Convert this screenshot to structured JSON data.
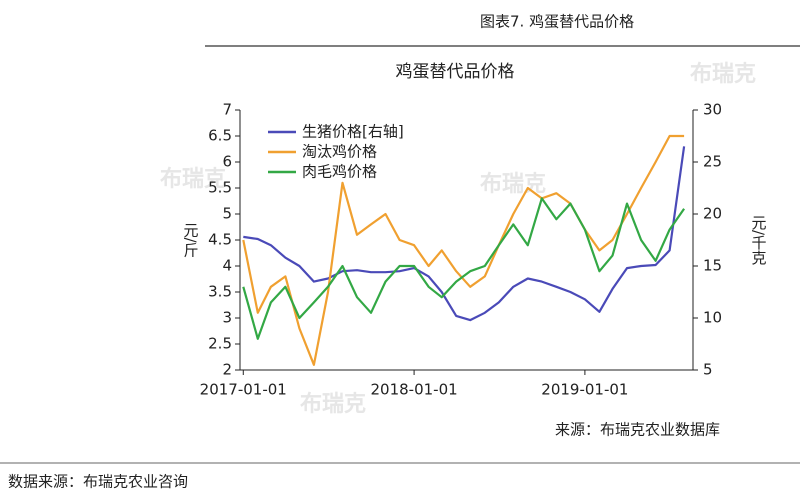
{
  "header": "图表7.   鸡蛋替代品价格",
  "chart_data": {
    "type": "line",
    "title": "鸡蛋替代品价格",
    "x": [
      "2017-01-01",
      "2017-02-01",
      "2017-03-01",
      "2017-04-01",
      "2017-05-01",
      "2017-06-01",
      "2017-07-01",
      "2017-08-01",
      "2017-09-01",
      "2017-10-01",
      "2017-11-01",
      "2017-12-01",
      "2018-01-01",
      "2018-02-01",
      "2018-03-01",
      "2018-04-01",
      "2018-05-01",
      "2018-06-01",
      "2018-07-01",
      "2018-08-01",
      "2018-09-01",
      "2018-10-01",
      "2018-11-01",
      "2018-12-01",
      "2019-01-01",
      "2019-02-01",
      "2019-03-01",
      "2019-04-01",
      "2019-05-01",
      "2019-06-01",
      "2019-07-01",
      "2019-08-01"
    ],
    "xlim": [
      "2016-12-25",
      "2019-08-20"
    ],
    "xticks": [
      "2017-01-01",
      "2018-01-01",
      "2019-01-01"
    ],
    "ylabel": "元/斤",
    "y2label": "元/千克",
    "ylim": [
      2,
      7
    ],
    "yticks": [
      2,
      2.5,
      3,
      3.5,
      4,
      4.5,
      5,
      5.5,
      6,
      6.5,
      7
    ],
    "y2lim": [
      5,
      30
    ],
    "y2ticks": [
      5,
      10,
      15,
      20,
      25,
      30
    ],
    "legend": "top-left",
    "series": [
      {
        "name": "生猪价格[右轴]",
        "color": "#4a4ab8",
        "axis": "y2",
        "values": [
          17.8,
          17.6,
          17.0,
          15.8,
          15.0,
          13.5,
          13.8,
          14.5,
          14.6,
          14.4,
          14.4,
          14.5,
          14.8,
          14.0,
          12.5,
          10.2,
          9.8,
          10.5,
          11.5,
          13.0,
          13.8,
          13.5,
          13.0,
          12.5,
          11.8,
          10.6,
          12.8,
          14.8,
          15.0,
          15.1,
          16.5,
          26.5
        ]
      },
      {
        "name": "淘汰鸡价格",
        "color": "#f0a030",
        "values": [
          4.5,
          3.1,
          3.6,
          3.8,
          2.8,
          2.1,
          3.5,
          5.6,
          4.6,
          4.8,
          5.0,
          4.5,
          4.4,
          4.0,
          4.3,
          3.9,
          3.6,
          3.8,
          4.4,
          5.0,
          5.5,
          5.3,
          5.4,
          5.2,
          4.7,
          4.3,
          4.5,
          5.0,
          5.5,
          6.0,
          6.5,
          6.5
        ]
      },
      {
        "name": "肉毛鸡价格",
        "color": "#33a845",
        "values": [
          3.6,
          2.6,
          3.3,
          3.6,
          3.0,
          3.3,
          3.6,
          4.0,
          3.4,
          3.1,
          3.7,
          4.0,
          4.0,
          3.6,
          3.4,
          3.7,
          3.9,
          4.0,
          4.4,
          4.8,
          4.4,
          5.3,
          4.9,
          5.2,
          4.7,
          3.9,
          4.2,
          5.2,
          4.5,
          4.1,
          4.7,
          5.1
        ]
      }
    ],
    "source": "来源：布瑞克农业数据库",
    "watermark": "布瑞克"
  },
  "footer": "数据来源：布瑞克农业咨询"
}
